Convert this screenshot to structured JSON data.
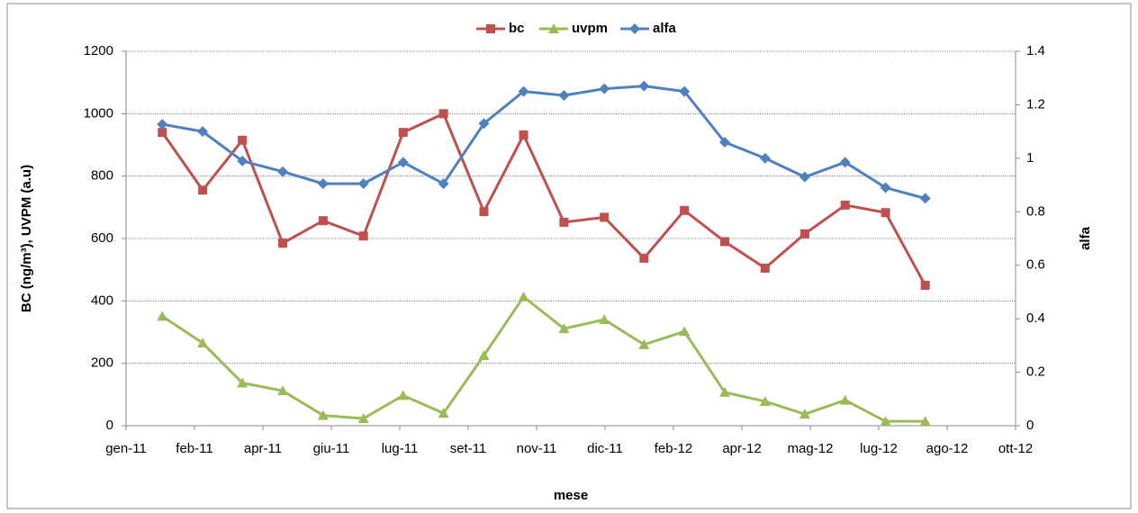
{
  "chart_data": {
    "type": "line",
    "xlabel": "mese",
    "ylabel": "BC (ng/m³), UVPM (a.u)",
    "y2label": "alfa",
    "legend": "top",
    "grid": true,
    "x": [
      0.53,
      1.12,
      1.7,
      2.29,
      2.88,
      3.47,
      4.05,
      4.64,
      5.23,
      5.81,
      6.4,
      6.99,
      7.57,
      8.16,
      8.75,
      9.34,
      9.92,
      10.51,
      11.1,
      11.68
    ],
    "xlim": [
      0,
      13
    ],
    "xticks": [
      {
        "value": 0,
        "label": "gen-11"
      },
      {
        "value": 1,
        "label": "feb-11"
      },
      {
        "value": 2,
        "label": "apr-11"
      },
      {
        "value": 3,
        "label": "giu-11"
      },
      {
        "value": 4,
        "label": "lug-11"
      },
      {
        "value": 5,
        "label": "set-11"
      },
      {
        "value": 6,
        "label": "nov-11"
      },
      {
        "value": 7,
        "label": "dic-11"
      },
      {
        "value": 8,
        "label": "feb-12"
      },
      {
        "value": 9,
        "label": "apr-12"
      },
      {
        "value": 10,
        "label": "mag-12"
      },
      {
        "value": 11,
        "label": "lug-12"
      },
      {
        "value": 12,
        "label": "ago-12"
      },
      {
        "value": 13,
        "label": "ott-12"
      }
    ],
    "ylim": [
      0,
      1200
    ],
    "yticks": [
      0,
      200,
      400,
      600,
      800,
      1000,
      1200
    ],
    "y2lim": [
      0,
      1.4
    ],
    "y2ticks": [
      0,
      0.2,
      0.4,
      0.6,
      0.8,
      1,
      1.2,
      1.4
    ],
    "series": [
      {
        "name": "bc",
        "color": "#c0504d",
        "marker": "square",
        "values": [
          940,
          755,
          915,
          585,
          657,
          608,
          940,
          1000,
          686,
          932,
          652,
          668,
          537,
          690,
          590,
          505,
          615,
          707,
          683,
          450
        ]
      },
      {
        "name": "uvpm",
        "color": "#9bbb59",
        "marker": "triangle",
        "values": [
          351,
          265,
          137,
          112,
          33,
          23,
          97,
          40,
          225,
          413,
          311,
          340,
          260,
          302,
          107,
          78,
          37,
          82,
          14,
          14
        ]
      },
      {
        "name": "alfa",
        "color": "#4f81bd",
        "marker": "diamond",
        "axis": "y2",
        "values": [
          1.127,
          1.1,
          0.99,
          0.95,
          0.905,
          0.905,
          0.985,
          0.905,
          1.13,
          1.25,
          1.235,
          1.26,
          1.27,
          1.25,
          1.06,
          1.0,
          0.93,
          0.985,
          0.89,
          0.85
        ]
      }
    ]
  }
}
